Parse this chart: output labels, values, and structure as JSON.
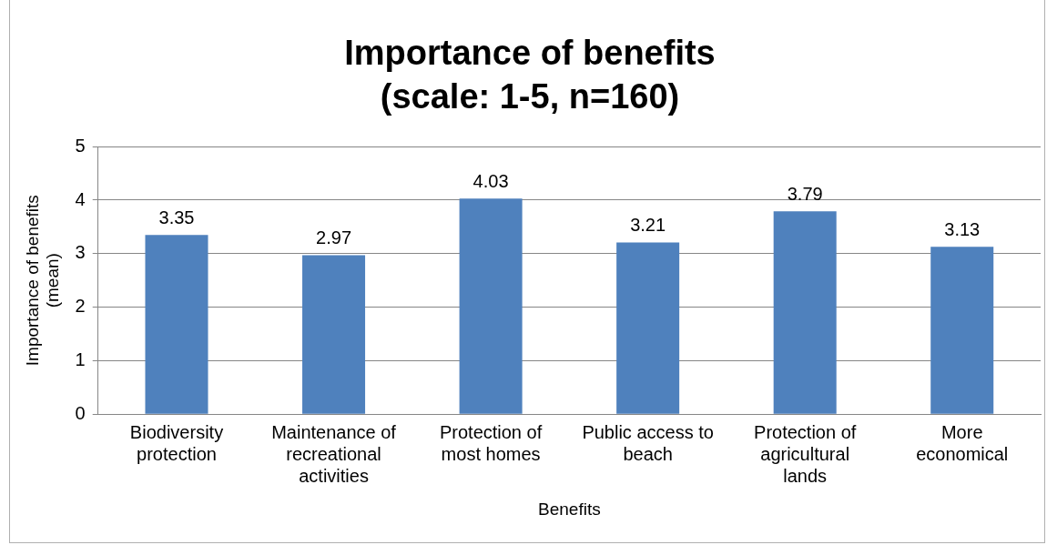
{
  "chart_data": {
    "type": "bar",
    "title": "Importance of benefits",
    "subtitle": "(scale: 1-5, n=160)",
    "xlabel": "Benefits",
    "ylabel": "Importance of benefits (mean)",
    "categories": [
      "Biodiversity protection",
      "Maintenance of recreational activities",
      "Protection of most homes",
      "Public access to beach",
      "Protection of agricultural lands",
      "More economical"
    ],
    "values": [
      3.35,
      2.97,
      4.03,
      3.21,
      3.79,
      3.13
    ],
    "color": "#4f81bd",
    "ylim": [
      0,
      5
    ],
    "yticks": [
      0,
      1,
      2,
      3,
      4,
      5
    ],
    "grid": "y",
    "data_labels": true,
    "legend": false
  }
}
